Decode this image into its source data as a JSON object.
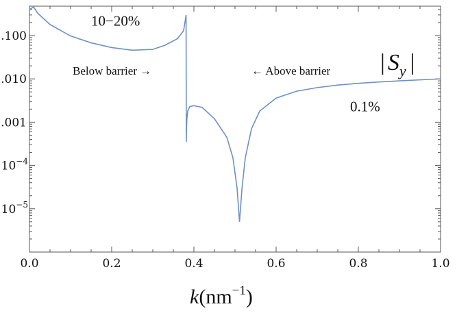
{
  "chart_data": {
    "type": "line",
    "xlabel": "k(nm",
    "xlabel_exponent": "−1",
    "xlabel_close": ")",
    "ylabel": "",
    "xlim": [
      0,
      1
    ],
    "ylim_log10": [
      -6.0,
      -0.32
    ],
    "y_scale": "log",
    "grid": false,
    "x_ticks": [
      {
        "value": 0.0,
        "label": "0.0"
      },
      {
        "value": 0.2,
        "label": "0.2"
      },
      {
        "value": 0.4,
        "label": "0.4"
      },
      {
        "value": 0.6,
        "label": "0.6"
      },
      {
        "value": 0.8,
        "label": "0.8"
      },
      {
        "value": 1.0,
        "label": "1.0"
      }
    ],
    "y_ticks": [
      {
        "value": 0.1,
        "label": "0.100"
      },
      {
        "value": 0.01,
        "label": "0.010"
      },
      {
        "value": 0.001,
        "label": "0.001"
      },
      {
        "value": 0.0001,
        "base": "10",
        "exp": "−4"
      },
      {
        "value": 1e-05,
        "base": "10",
        "exp": "−5"
      }
    ],
    "series": [
      {
        "color": "#6f8fc5",
        "x": [
          0.0,
          0.01,
          0.02,
          0.05,
          0.1,
          0.15,
          0.2,
          0.25,
          0.3,
          0.33,
          0.36,
          0.375,
          0.381,
          0.3815,
          0.382,
          0.383,
          0.385,
          0.39,
          0.4,
          0.42,
          0.45,
          0.48,
          0.495,
          0.505,
          0.511,
          0.517,
          0.525,
          0.54,
          0.56,
          0.6,
          0.65,
          0.7,
          0.75,
          0.8,
          0.85,
          0.9,
          0.95,
          1.0
        ],
        "y": [
          0.4,
          0.46,
          0.33,
          0.18,
          0.098,
          0.068,
          0.053,
          0.046,
          0.048,
          0.06,
          0.085,
          0.13,
          0.3,
          0.00035,
          0.0007,
          0.0012,
          0.0018,
          0.0023,
          0.0024,
          0.0022,
          0.0012,
          0.00045,
          0.00015,
          3e-05,
          5e-06,
          3e-05,
          0.00015,
          0.0007,
          0.0018,
          0.0036,
          0.0052,
          0.0063,
          0.0072,
          0.0079,
          0.0085,
          0.009,
          0.0095,
          0.01
        ]
      }
    ],
    "annotations": [
      {
        "text": "10−20%",
        "x": 0.15,
        "y": 0.17
      },
      {
        "text": "Below barrier  →",
        "x": 0.105,
        "y": 0.0125
      },
      {
        "text": "←  Above barrier",
        "x": 0.54,
        "y": 0.0125
      },
      {
        "text": "0.1%",
        "x": 0.78,
        "y": 0.0018
      }
    ],
    "series_label": {
      "open": "|",
      "symbol": "S",
      "sub": "y",
      "close": "|"
    }
  }
}
